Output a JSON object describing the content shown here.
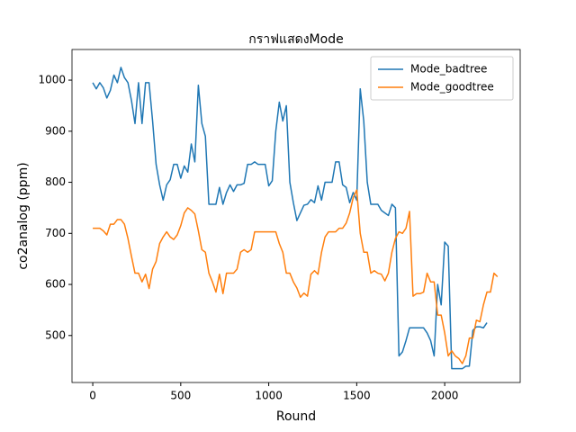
{
  "chart_data": {
    "type": "line",
    "title": "กราฟแสดงMode",
    "x_label": "Round",
    "y_label": "co2analog (ppm)",
    "xlim": [
      -118,
      2429
    ],
    "ylim": [
      408,
      1060
    ],
    "xticks": [
      0,
      500,
      1000,
      1500,
      2000
    ],
    "yticks": [
      500,
      600,
      700,
      800,
      900,
      1000
    ],
    "legend": "upper right",
    "series": [
      {
        "name": "Mode_badtree",
        "color": "#1f77b4",
        "x": [
          0,
          20,
          40,
          60,
          80,
          100,
          120,
          140,
          160,
          180,
          200,
          220,
          240,
          260,
          280,
          300,
          320,
          340,
          360,
          380,
          400,
          420,
          440,
          460,
          480,
          500,
          520,
          540,
          560,
          580,
          600,
          620,
          640,
          660,
          680,
          700,
          720,
          740,
          760,
          780,
          800,
          820,
          840,
          860,
          880,
          900,
          920,
          940,
          960,
          980,
          1000,
          1020,
          1040,
          1060,
          1080,
          1100,
          1120,
          1140,
          1160,
          1180,
          1200,
          1220,
          1240,
          1260,
          1280,
          1300,
          1320,
          1340,
          1360,
          1380,
          1400,
          1420,
          1440,
          1460,
          1480,
          1500,
          1520,
          1540,
          1560,
          1580,
          1600,
          1620,
          1640,
          1660,
          1680,
          1700,
          1720,
          1740,
          1760,
          1780,
          1800,
          1820,
          1840,
          1860,
          1880,
          1900,
          1920,
          1940,
          1960,
          1980,
          2000,
          2020,
          2040,
          2060,
          2080,
          2100,
          2120,
          2140,
          2160,
          2180,
          2200,
          2220,
          2240
        ],
        "values": [
          995,
          983,
          995,
          985,
          965,
          980,
          1010,
          995,
          1025,
          1005,
          995,
          960,
          915,
          995,
          915,
          995,
          995,
          920,
          835,
          795,
          765,
          795,
          805,
          835,
          835,
          808,
          832,
          820,
          875,
          840,
          990,
          915,
          890,
          757,
          757,
          757,
          790,
          757,
          780,
          795,
          782,
          795,
          795,
          798,
          835,
          835,
          840,
          835,
          835,
          835,
          793,
          803,
          900,
          957,
          920,
          950,
          800,
          760,
          725,
          740,
          755,
          757,
          766,
          760,
          793,
          765,
          800,
          800,
          800,
          840,
          840,
          795,
          790,
          760,
          780,
          765,
          983,
          920,
          800,
          757,
          757,
          757,
          745,
          740,
          735,
          757,
          750,
          460,
          468,
          490,
          515,
          515,
          515,
          515,
          515,
          505,
          490,
          460,
          600,
          560,
          683,
          675,
          435,
          435,
          435,
          435,
          440,
          440,
          510,
          517,
          517,
          515,
          525
        ]
      },
      {
        "name": "Mode_goodtree",
        "color": "#ff7f0e",
        "x": [
          0,
          20,
          40,
          60,
          80,
          100,
          120,
          140,
          160,
          180,
          200,
          220,
          240,
          260,
          280,
          300,
          320,
          340,
          360,
          380,
          400,
          420,
          440,
          460,
          480,
          500,
          520,
          540,
          560,
          580,
          600,
          620,
          640,
          660,
          680,
          700,
          720,
          740,
          760,
          780,
          800,
          820,
          840,
          860,
          880,
          900,
          920,
          940,
          960,
          980,
          1000,
          1020,
          1040,
          1060,
          1080,
          1100,
          1120,
          1140,
          1160,
          1180,
          1200,
          1220,
          1240,
          1260,
          1280,
          1300,
          1320,
          1340,
          1360,
          1380,
          1400,
          1420,
          1440,
          1460,
          1480,
          1500,
          1520,
          1540,
          1560,
          1580,
          1600,
          1620,
          1640,
          1660,
          1680,
          1700,
          1720,
          1740,
          1760,
          1780,
          1800,
          1820,
          1840,
          1860,
          1880,
          1900,
          1920,
          1940,
          1960,
          1980,
          2000,
          2020,
          2040,
          2060,
          2080,
          2100,
          2120,
          2140,
          2160,
          2180,
          2200,
          2220,
          2240,
          2260,
          2280,
          2300
        ],
        "values": [
          710,
          710,
          710,
          705,
          697,
          718,
          718,
          727,
          727,
          718,
          690,
          655,
          622,
          622,
          605,
          620,
          592,
          630,
          645,
          680,
          693,
          703,
          693,
          688,
          697,
          715,
          740,
          750,
          745,
          738,
          705,
          668,
          663,
          622,
          605,
          585,
          620,
          582,
          622,
          622,
          622,
          630,
          663,
          668,
          663,
          668,
          703,
          703,
          703,
          703,
          703,
          703,
          703,
          680,
          663,
          622,
          622,
          605,
          593,
          575,
          583,
          577,
          620,
          627,
          620,
          663,
          693,
          703,
          703,
          703,
          710,
          710,
          720,
          740,
          770,
          785,
          700,
          663,
          663,
          622,
          627,
          622,
          620,
          607,
          622,
          663,
          690,
          703,
          700,
          710,
          743,
          577,
          582,
          582,
          585,
          622,
          605,
          605,
          540,
          540,
          505,
          460,
          470,
          460,
          455,
          445,
          460,
          495,
          495,
          530,
          527,
          560,
          585,
          585,
          622,
          615
        ]
      }
    ]
  }
}
